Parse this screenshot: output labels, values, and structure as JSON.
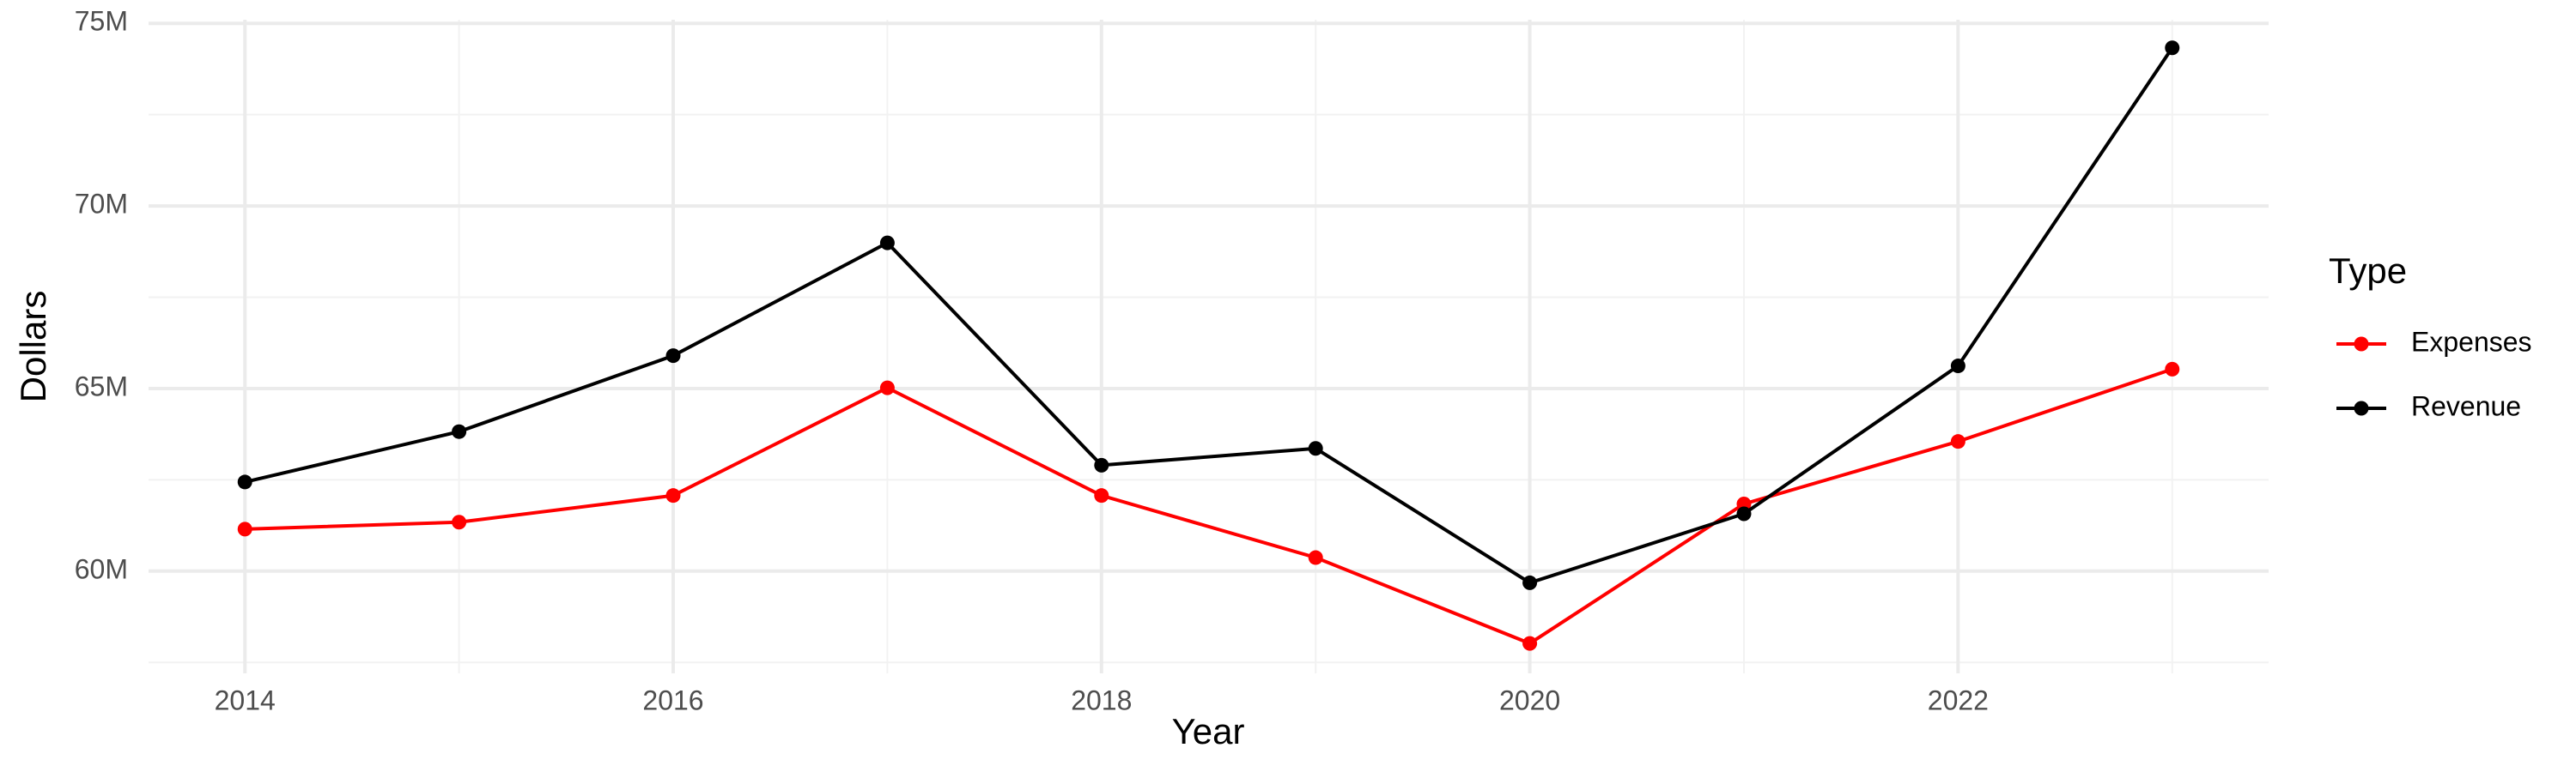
{
  "chart_data": {
    "type": "line",
    "x_label": "Year",
    "y_label": "Dollars",
    "legend_title": "Type",
    "legend_position": "right",
    "grid": true,
    "x": [
      2014,
      2015,
      2016,
      2017,
      2018,
      2019,
      2020,
      2021,
      2022,
      2023
    ],
    "series": [
      {
        "name": "Expenses",
        "color": "#ff0000",
        "values": [
          61150000,
          61340000,
          62070000,
          65020000,
          62070000,
          60370000,
          58020000,
          61840000,
          63550000,
          65530000
        ]
      },
      {
        "name": "Revenue",
        "color": "#000000",
        "values": [
          62440000,
          63820000,
          65900000,
          68990000,
          62900000,
          63360000,
          59680000,
          61570000,
          65620000,
          74330000
        ]
      }
    ],
    "xlim": [
      2013.55,
      2023.45
    ],
    "xticks": [
      2014,
      2016,
      2018,
      2020,
      2022
    ],
    "x_minor_ticks": [
      2015,
      2017,
      2019,
      2021,
      2023
    ],
    "ylim": [
      57200000,
      75100000
    ],
    "yticks": [
      {
        "value": 60000000,
        "label": "60M"
      },
      {
        "value": 65000000,
        "label": "65M"
      },
      {
        "value": 70000000,
        "label": "70M"
      },
      {
        "value": 75000000,
        "label": "75M"
      }
    ],
    "y_minor_ticks": [
      57500000,
      62500000,
      67500000,
      72500000
    ]
  }
}
